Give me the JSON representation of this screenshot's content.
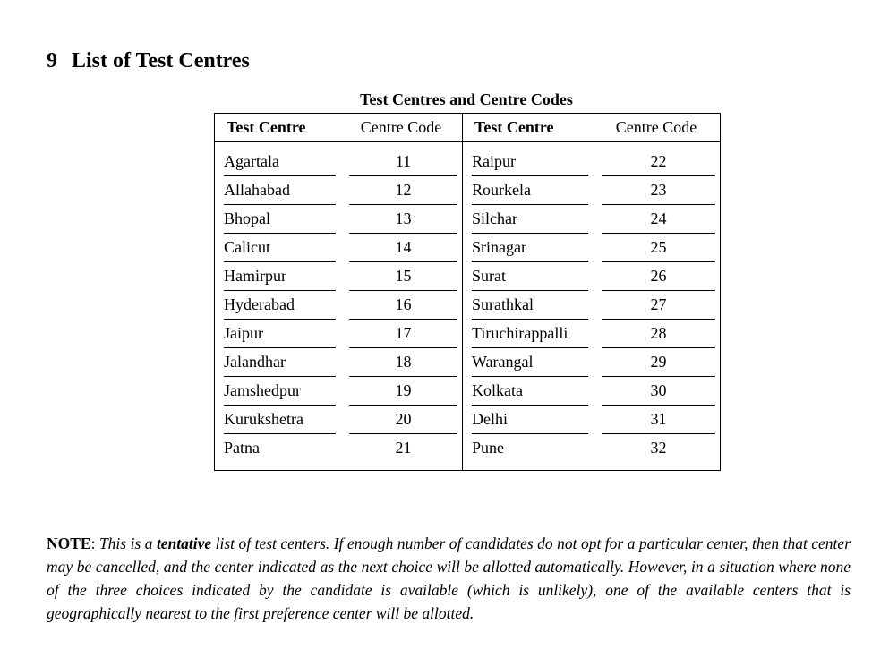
{
  "heading": {
    "number": "9",
    "title": "List of Test Centres"
  },
  "table": {
    "caption": "Test Centres and Centre Codes",
    "headers": [
      "Test Centre",
      "Centre Code",
      "Test Centre",
      "Centre Code"
    ],
    "rows": [
      [
        "Agartala",
        11,
        "Raipur",
        22
      ],
      [
        "Allahabad",
        12,
        "Rourkela",
        23
      ],
      [
        "Bhopal",
        13,
        "Silchar",
        24
      ],
      [
        "Calicut",
        14,
        "Srinagar",
        25
      ],
      [
        "Hamirpur",
        15,
        "Surat",
        26
      ],
      [
        "Hyderabad",
        16,
        "Surathkal",
        27
      ],
      [
        "Jaipur",
        17,
        "Tiruchirappalli",
        28
      ],
      [
        "Jalandhar",
        18,
        "Warangal",
        29
      ],
      [
        "Jamshedpur",
        19,
        "Kolkata",
        30
      ],
      [
        "Kurukshetra",
        20,
        "Delhi",
        31
      ],
      [
        "Patna",
        21,
        "Pune",
        32
      ]
    ]
  },
  "note": {
    "label": "NOTE",
    "separator": ":",
    "lead": "This is a",
    "emphasis": "tentative",
    "rest": "list of test centers. If enough number of candidates do not opt for a particular center, then that center may be cancelled, and the center indicated as the next choice will be allotted automatically. However, in a situation where none of the three choices indicated by the candidate is available (which is unlikely), one of the available centers that is geographically nearest to the first preference center will be allotted."
  }
}
